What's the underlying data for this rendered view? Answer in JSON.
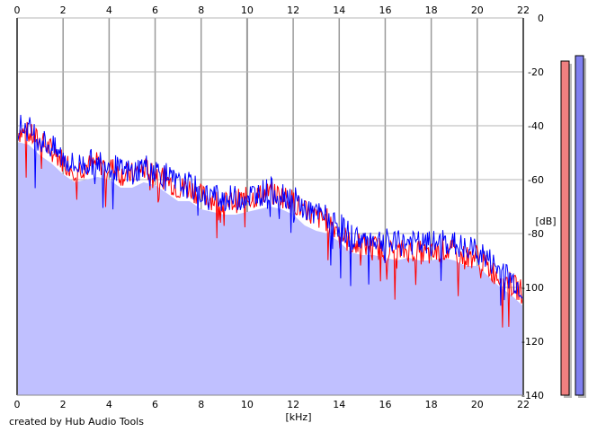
{
  "chart_data": {
    "type": "area",
    "xlabel": "[kHz]",
    "ylabel": "[dB]",
    "xlim": [
      0,
      22
    ],
    "ylim": [
      -140,
      0
    ],
    "x_ticks": [
      "0",
      "2",
      "4",
      "6",
      "8",
      "10",
      "12",
      "14",
      "16",
      "18",
      "20",
      "22"
    ],
    "y_ticks": [
      "0",
      "-20",
      "-40",
      "-60",
      "-80",
      "-100",
      "-120",
      "-140"
    ],
    "grid": true,
    "series": [
      {
        "color": "#ff0000",
        "x": [
          0,
          0.5,
          1,
          1.5,
          2,
          2.5,
          3,
          3.5,
          4,
          4.5,
          5,
          5.5,
          6,
          6.5,
          7,
          7.5,
          8,
          8.5,
          9,
          9.5,
          10,
          10.5,
          11,
          11.5,
          12,
          12.5,
          13,
          13.5,
          14,
          14.5,
          15,
          15.5,
          16,
          16.5,
          17,
          17.5,
          18,
          18.5,
          19,
          19.5,
          20,
          20.5,
          21,
          21.5,
          22
        ],
        "y": [
          -42,
          -43,
          -46,
          -49,
          -53,
          -56,
          -55,
          -54,
          -55,
          -58,
          -58,
          -56,
          -57,
          -60,
          -63,
          -63,
          -66,
          -67,
          -69,
          -68,
          -67,
          -66,
          -65,
          -66,
          -68,
          -72,
          -74,
          -75,
          -79,
          -84,
          -84,
          -85,
          -86,
          -87,
          -86,
          -87,
          -88,
          -86,
          -87,
          -89,
          -88,
          -93,
          -96,
          -99,
          -102
        ]
      },
      {
        "color": "#0000ff",
        "x": [
          0,
          0.5,
          1,
          1.5,
          2,
          2.5,
          3,
          3.5,
          4,
          4.5,
          5,
          5.5,
          6,
          6.5,
          7,
          7.5,
          8,
          8.5,
          9,
          9.5,
          10,
          10.5,
          11,
          11.5,
          12,
          12.5,
          13,
          13.5,
          14,
          14.5,
          15,
          15.5,
          16,
          16.5,
          17,
          17.5,
          18,
          18.5,
          19,
          19.5,
          20,
          20.5,
          21,
          21.5,
          22
        ],
        "y": [
          -40,
          -41,
          -45,
          -48,
          -52,
          -55,
          -54,
          -53,
          -54,
          -57,
          -57,
          -55,
          -56,
          -59,
          -62,
          -62,
          -65,
          -66,
          -67,
          -67,
          -66,
          -65,
          -64,
          -65,
          -67,
          -71,
          -73,
          -74,
          -77,
          -81,
          -82,
          -82,
          -83,
          -84,
          -83,
          -84,
          -84,
          -83,
          -84,
          -86,
          -86,
          -90,
          -94,
          -97,
          -101
        ]
      }
    ],
    "area_fill": "#c0c0ff",
    "level_meters": [
      {
        "color": "#f08080",
        "level_db": -16
      },
      {
        "color": "#8080f0",
        "level_db": -14
      }
    ]
  },
  "footer": {
    "credit": "created by Hub Audio Tools"
  }
}
